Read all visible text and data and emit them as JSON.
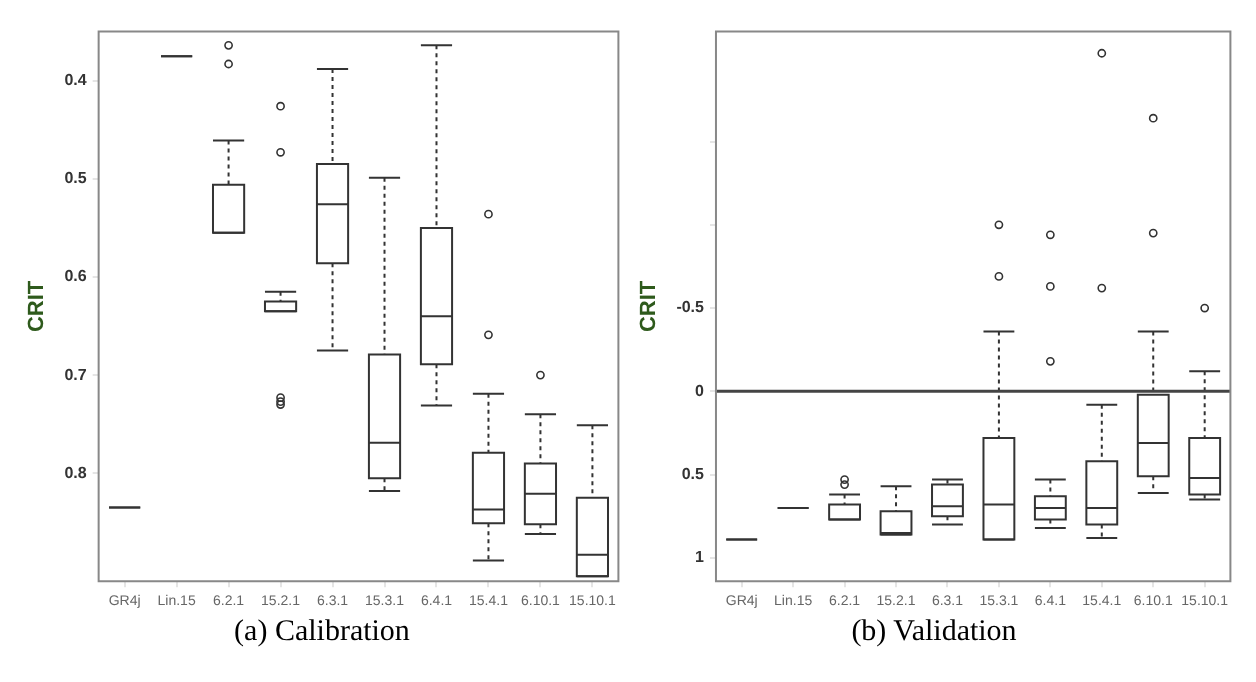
{
  "chart_data": [
    {
      "type": "box",
      "ylabel": "CRIT",
      "annotations": [
        "(a) Calibration"
      ],
      "color": "#333333",
      "categories": [
        "GR4j",
        "Lin.15",
        "6.2.1",
        "15.2.1",
        "6.3.1",
        "15.3.1",
        "6.4.1",
        "15.4.1",
        "6.10.1",
        "15.10.1"
      ],
      "ylim": [
        0.91,
        0.35
      ],
      "yticks": [
        0.4,
        0.5,
        0.6,
        0.7,
        0.8
      ],
      "boxes": [
        {
          "low": 0.835,
          "q1": 0.835,
          "median": 0.835,
          "q3": 0.835,
          "high": 0.835
        },
        {
          "low": 0.375,
          "q1": 0.375,
          "median": 0.375,
          "q3": 0.375,
          "high": 0.375
        },
        {
          "low": 0.461,
          "q1": 0.506,
          "median": 0.506,
          "q3": 0.555,
          "high": 0.555,
          "outliers": [
            0.364,
            0.383
          ]
        },
        {
          "low": 0.615,
          "q1": 0.625,
          "median": 0.625,
          "q3": 0.635,
          "high": 0.635,
          "outliers": [
            0.426,
            0.473,
            0.723,
            0.727,
            0.73
          ]
        },
        {
          "low": 0.388,
          "q1": 0.485,
          "median": 0.526,
          "q3": 0.586,
          "high": 0.675
        },
        {
          "low": 0.499,
          "q1": 0.679,
          "median": 0.769,
          "q3": 0.805,
          "high": 0.818
        },
        {
          "low": 0.364,
          "q1": 0.55,
          "median": 0.64,
          "q3": 0.689,
          "high": 0.731
        },
        {
          "low": 0.719,
          "q1": 0.779,
          "median": 0.837,
          "q3": 0.851,
          "high": 0.889,
          "outliers": [
            0.536,
            0.659
          ]
        },
        {
          "low": 0.74,
          "q1": 0.79,
          "median": 0.821,
          "q3": 0.852,
          "high": 0.862,
          "outliers": [
            0.7
          ]
        },
        {
          "low": 0.751,
          "q1": 0.825,
          "median": 0.883,
          "q3": 0.905,
          "high": 0.905
        }
      ]
    },
    {
      "type": "box",
      "ylabel": "CRIT",
      "annotations": [
        "(b) Validation"
      ],
      "color": "#333333",
      "categories": [
        "GR4j",
        "Lin.15",
        "6.2.1",
        "15.2.1",
        "6.3.1",
        "15.3.1",
        "6.4.1",
        "15.4.1",
        "6.10.1",
        "15.10.1"
      ],
      "ylim": [
        1.14,
        -2.16
      ],
      "yticks": [
        1,
        0.5,
        0,
        -0.5,
        {
          "value": -1,
          "label": null
        },
        {
          "value": -1.5,
          "label": null
        }
      ],
      "ref_lines": [
        {
          "axis": "y",
          "value": 0,
          "color": "#444444"
        }
      ],
      "boxes": [
        {
          "low": 0.89,
          "q1": 0.89,
          "median": 0.89,
          "q3": 0.89,
          "high": 0.89
        },
        {
          "low": 0.7,
          "q1": 0.7,
          "median": 0.7,
          "q3": 0.7,
          "high": 0.7
        },
        {
          "low": 0.62,
          "q1": 0.68,
          "median": 0.68,
          "q3": 0.77,
          "high": 0.77,
          "outliers": [
            0.53,
            0.56
          ]
        },
        {
          "low": 0.57,
          "q1": 0.72,
          "median": 0.85,
          "q3": 0.86,
          "high": 0.86
        },
        {
          "low": 0.53,
          "q1": 0.56,
          "median": 0.69,
          "q3": 0.75,
          "high": 0.8
        },
        {
          "low": -0.36,
          "q1": 0.28,
          "median": 0.68,
          "q3": 0.89,
          "high": 0.89,
          "outliers": [
            -1.0,
            -0.69
          ]
        },
        {
          "low": 0.53,
          "q1": 0.63,
          "median": 0.7,
          "q3": 0.77,
          "high": 0.82,
          "outliers": [
            -0.94,
            -0.63,
            -0.18
          ]
        },
        {
          "low": 0.08,
          "q1": 0.42,
          "median": 0.7,
          "q3": 0.8,
          "high": 0.88,
          "outliers": [
            -2.03,
            -0.62
          ]
        },
        {
          "low": -0.36,
          "q1": 0.02,
          "median": 0.31,
          "q3": 0.51,
          "high": 0.61,
          "outliers": [
            -1.64,
            -0.95
          ]
        },
        {
          "low": -0.12,
          "q1": 0.28,
          "median": 0.52,
          "q3": 0.62,
          "high": 0.65,
          "outliers": [
            -0.5
          ]
        }
      ]
    }
  ]
}
